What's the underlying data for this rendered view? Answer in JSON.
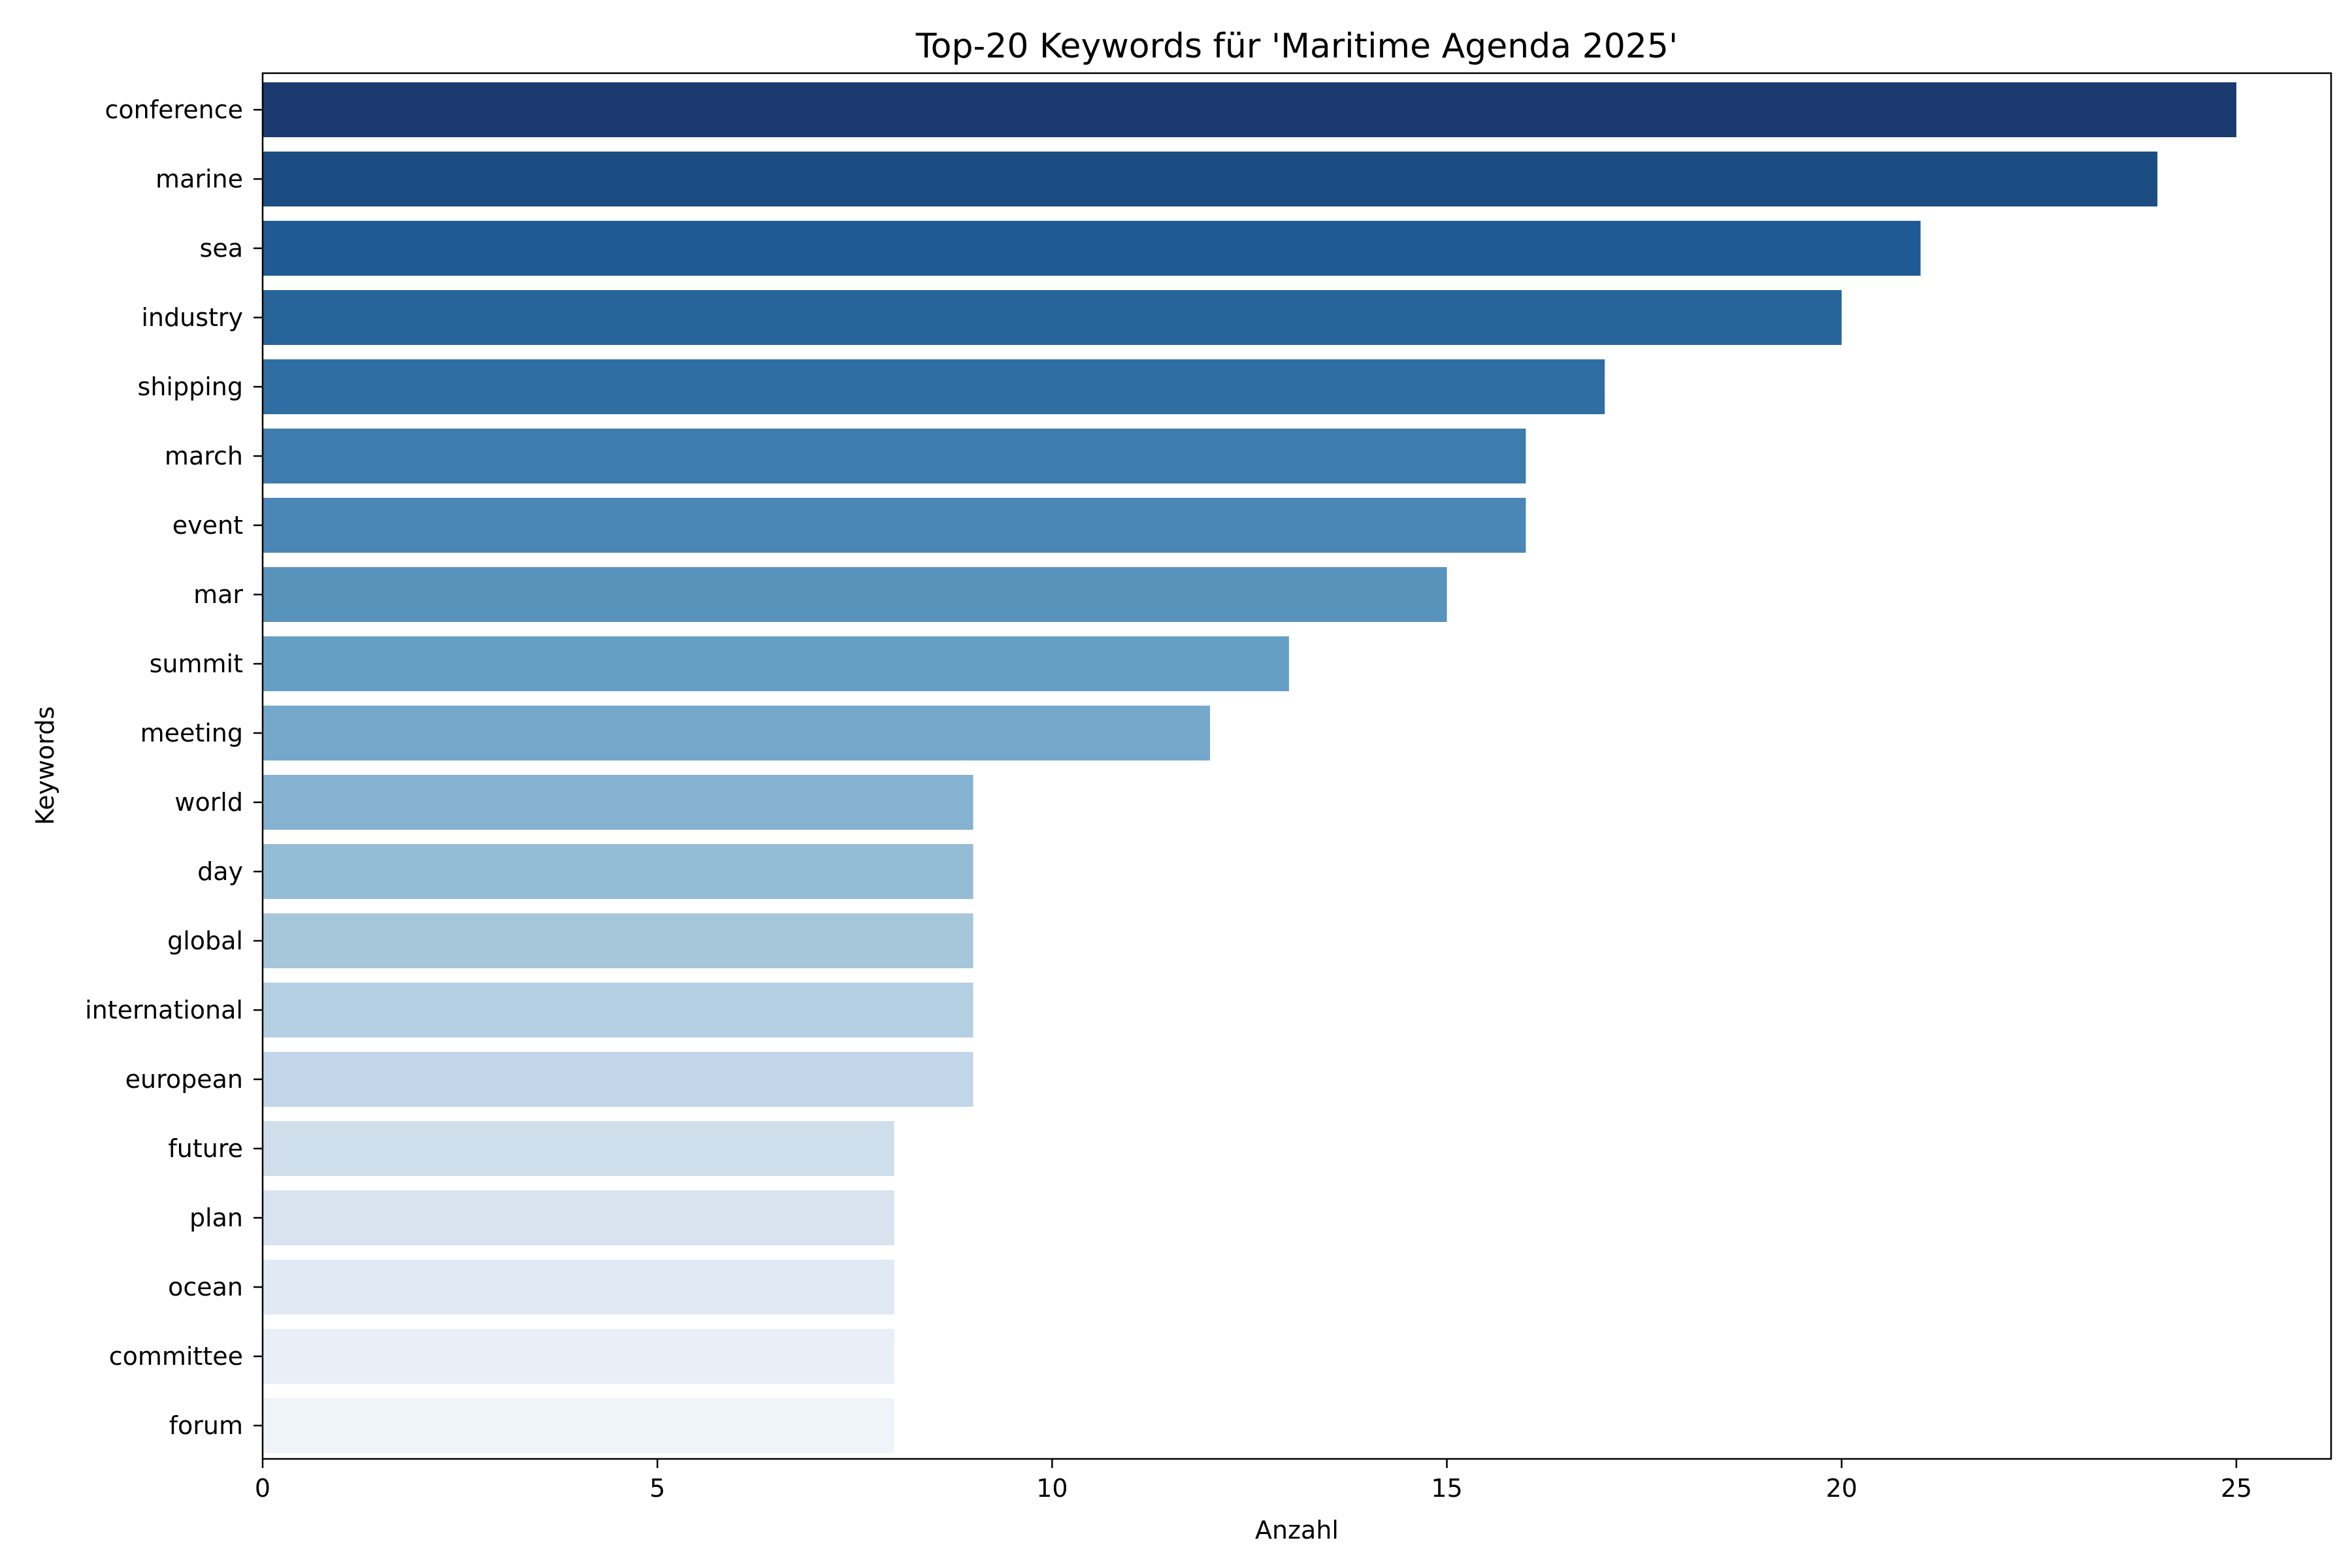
{
  "chart_data": {
    "type": "bar",
    "orientation": "horizontal",
    "title": "Top-20 Keywords für 'Maritime Agenda 2025'",
    "xlabel": "Anzahl",
    "ylabel": "Keywords",
    "xlim": [
      0,
      26.2
    ],
    "xticks": [
      0,
      5,
      10,
      15,
      20,
      25
    ],
    "grid": false,
    "legend": "none",
    "colormap": "Blues (dark to light)",
    "categories": [
      "conference",
      "marine",
      "sea",
      "industry",
      "shipping",
      "march",
      "event",
      "mar",
      "summit",
      "meeting",
      "world",
      "day",
      "global",
      "international",
      "european",
      "future",
      "plan",
      "ocean",
      "committee",
      "forum"
    ],
    "values": [
      25,
      24,
      21,
      20,
      17,
      16,
      16,
      15,
      13,
      12,
      9,
      9,
      9,
      9,
      9,
      8,
      8,
      8,
      8,
      8
    ],
    "colors": [
      "#1b3b70",
      "#1b4c82",
      "#1f5a94",
      "#27649a",
      "#2f6ea3",
      "#3d7cad",
      "#4a86b6",
      "#5893bb",
      "#669fc4",
      "#74a7ca",
      "#86b2d1",
      "#95bcd5",
      "#a6c7da",
      "#b4cfe2",
      "#c1d6e8",
      "#cfdeeb",
      "#d8e3ef",
      "#e0e9f4",
      "#e8eff7",
      "#eff4fb"
    ]
  }
}
